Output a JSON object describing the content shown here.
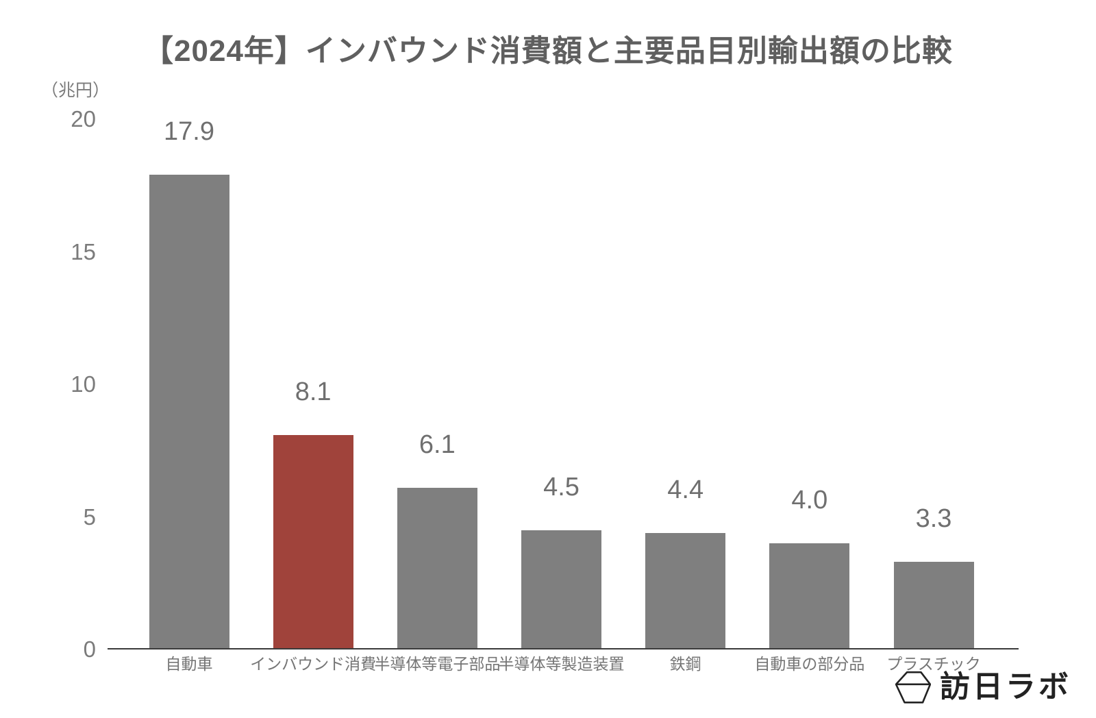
{
  "title": "【2024年】インバウンド消費額と主要品目別輸出額の比較",
  "chart_data": {
    "type": "bar",
    "title": "【2024年】インバウンド消費額と主要品目別輸出額の比較",
    "unit_label": "（兆円）",
    "categories": [
      "自動車",
      "インバウンド消費",
      "半導体等電子部品",
      "半導体等製造装置",
      "鉄鋼",
      "自動車の部分品",
      "プラスチック"
    ],
    "values": [
      17.9,
      8.1,
      6.1,
      4.5,
      4.4,
      4.0,
      3.3
    ],
    "value_labels": [
      "17.9",
      "8.1",
      "6.1",
      "4.5",
      "4.4",
      "4.0",
      "3.3"
    ],
    "highlight_index": 1,
    "yticks": [
      0,
      5,
      10,
      15,
      20
    ],
    "ylim": [
      0,
      20
    ],
    "xlabel": "",
    "ylabel": "（兆円）",
    "grid": false,
    "legend": "none",
    "colors": {
      "bar": "#7F7F7F",
      "highlight": "#A0433B",
      "axis": "#3A3A3A",
      "tick_text": "#7B7B7B",
      "value_text": "#6F6F6F",
      "category_text": "#757575",
      "title_text": "#5F5F5F"
    }
  },
  "logo": {
    "text": "訪日ラボ",
    "icon": "hexagon-gem-icon"
  }
}
